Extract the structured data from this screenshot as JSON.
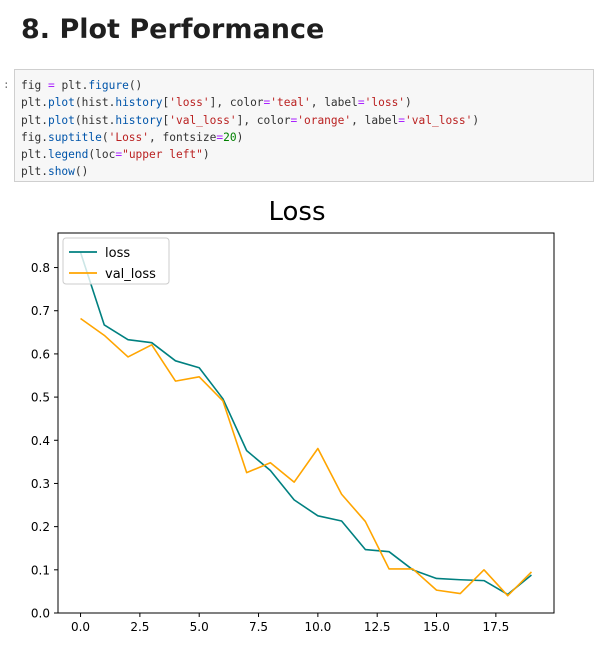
{
  "heading": "8. Plot Performance",
  "prompt": ":",
  "code_lines": [
    [
      {
        "t": "fig "
      },
      {
        "t": "=",
        "c": "op"
      },
      {
        "t": " plt."
      },
      {
        "t": "figure",
        "c": "attr"
      },
      {
        "t": "()"
      }
    ],
    [
      {
        "t": "plt."
      },
      {
        "t": "plot",
        "c": "attr"
      },
      {
        "t": "(hist."
      },
      {
        "t": "history",
        "c": "attr"
      },
      {
        "t": "["
      },
      {
        "t": "'loss'",
        "c": "str"
      },
      {
        "t": "], color"
      },
      {
        "t": "=",
        "c": "op"
      },
      {
        "t": "'teal'",
        "c": "str"
      },
      {
        "t": ", label"
      },
      {
        "t": "=",
        "c": "op"
      },
      {
        "t": "'loss'",
        "c": "str"
      },
      {
        "t": ")"
      }
    ],
    [
      {
        "t": "plt."
      },
      {
        "t": "plot",
        "c": "attr"
      },
      {
        "t": "(hist."
      },
      {
        "t": "history",
        "c": "attr"
      },
      {
        "t": "["
      },
      {
        "t": "'val_loss'",
        "c": "str"
      },
      {
        "t": "], color"
      },
      {
        "t": "=",
        "c": "op"
      },
      {
        "t": "'orange'",
        "c": "str"
      },
      {
        "t": ", label"
      },
      {
        "t": "=",
        "c": "op"
      },
      {
        "t": "'val_loss'",
        "c": "str"
      },
      {
        "t": ")"
      }
    ],
    [
      {
        "t": "fig."
      },
      {
        "t": "suptitle",
        "c": "attr"
      },
      {
        "t": "("
      },
      {
        "t": "'Loss'",
        "c": "str"
      },
      {
        "t": ", fontsize"
      },
      {
        "t": "=",
        "c": "op"
      },
      {
        "t": "20",
        "c": "num"
      },
      {
        "t": ")"
      }
    ],
    [
      {
        "t": "plt."
      },
      {
        "t": "legend",
        "c": "attr"
      },
      {
        "t": "(loc"
      },
      {
        "t": "=",
        "c": "op"
      },
      {
        "t": "\"upper left\"",
        "c": "str"
      },
      {
        "t": ")"
      }
    ],
    [
      {
        "t": "plt."
      },
      {
        "t": "show",
        "c": "attr"
      },
      {
        "t": "()"
      }
    ]
  ],
  "chart_data": {
    "type": "line",
    "title": "Loss",
    "xlabel": "",
    "ylabel": "",
    "xlim": [
      -0.95,
      19.95
    ],
    "ylim": [
      0.0,
      0.88
    ],
    "xticks": [
      0.0,
      2.5,
      5.0,
      7.5,
      10.0,
      12.5,
      15.0,
      17.5
    ],
    "xtick_labels": [
      "0.0",
      "2.5",
      "5.0",
      "7.5",
      "10.0",
      "12.5",
      "15.0",
      "17.5"
    ],
    "yticks": [
      0.0,
      0.1,
      0.2,
      0.3,
      0.4,
      0.5,
      0.6,
      0.7,
      0.8
    ],
    "ytick_labels": [
      "0.0",
      "0.1",
      "0.2",
      "0.3",
      "0.4",
      "0.5",
      "0.6",
      "0.7",
      "0.8"
    ],
    "grid": false,
    "legend": "upper-left",
    "x": [
      0,
      1,
      2,
      3,
      4,
      5,
      6,
      7,
      8,
      9,
      10,
      11,
      12,
      13,
      14,
      15,
      16,
      17,
      18,
      19
    ],
    "series": [
      {
        "name": "loss",
        "color": "#008080",
        "values": [
          0.835,
          0.667,
          0.633,
          0.626,
          0.584,
          0.568,
          0.496,
          0.376,
          0.33,
          0.262,
          0.225,
          0.213,
          0.147,
          0.142,
          0.1,
          0.08,
          0.077,
          0.075,
          0.043,
          0.088
        ]
      },
      {
        "name": "val_loss",
        "color": "#ffa500",
        "values": [
          0.682,
          0.643,
          0.593,
          0.621,
          0.537,
          0.547,
          0.491,
          0.325,
          0.348,
          0.303,
          0.381,
          0.275,
          0.212,
          0.102,
          0.102,
          0.053,
          0.045,
          0.1,
          0.04,
          0.095
        ]
      }
    ]
  }
}
